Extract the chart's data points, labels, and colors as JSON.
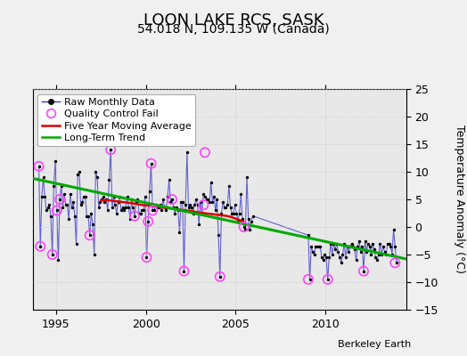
{
  "title": "LOON LAKE RCS, SASK",
  "subtitle": "54.018 N, 109.135 W (Canada)",
  "ylabel": "Temperature Anomaly (°C)",
  "attribution": "Berkeley Earth",
  "xlim": [
    1993.7,
    2014.5
  ],
  "ylim": [
    -15,
    25
  ],
  "yticks": [
    -15,
    -10,
    -5,
    0,
    5,
    10,
    15,
    20,
    25
  ],
  "xticks": [
    1995,
    2000,
    2005,
    2010
  ],
  "bg_color": "#e8e8e8",
  "raw_x": [
    1994.042,
    1994.125,
    1994.208,
    1994.292,
    1994.375,
    1994.458,
    1994.542,
    1994.625,
    1994.708,
    1994.792,
    1994.875,
    1994.958,
    1995.042,
    1995.125,
    1995.208,
    1995.292,
    1995.375,
    1995.458,
    1995.542,
    1995.625,
    1995.708,
    1995.792,
    1995.875,
    1995.958,
    1996.042,
    1996.125,
    1996.208,
    1996.292,
    1996.375,
    1996.458,
    1996.542,
    1996.625,
    1996.708,
    1996.792,
    1996.875,
    1996.958,
    1997.042,
    1997.125,
    1997.208,
    1997.292,
    1997.375,
    1997.458,
    1997.542,
    1997.625,
    1997.708,
    1997.792,
    1997.875,
    1997.958,
    1998.042,
    1998.125,
    1998.208,
    1998.292,
    1998.375,
    1998.458,
    1998.542,
    1998.625,
    1998.708,
    1998.792,
    1998.875,
    1998.958,
    1999.042,
    1999.125,
    1999.208,
    1999.292,
    1999.375,
    1999.458,
    1999.542,
    1999.625,
    1999.708,
    1999.792,
    1999.875,
    1999.958,
    2000.042,
    2000.125,
    2000.208,
    2000.292,
    2000.375,
    2000.458,
    2000.542,
    2000.625,
    2000.708,
    2000.792,
    2000.875,
    2000.958,
    2001.042,
    2001.125,
    2001.208,
    2001.292,
    2001.375,
    2001.458,
    2001.542,
    2001.625,
    2001.708,
    2001.792,
    2001.875,
    2001.958,
    2002.042,
    2002.125,
    2002.208,
    2002.292,
    2002.375,
    2002.458,
    2002.542,
    2002.625,
    2002.708,
    2002.792,
    2002.875,
    2002.958,
    2003.042,
    2003.125,
    2003.208,
    2003.292,
    2003.375,
    2003.458,
    2003.542,
    2003.625,
    2003.708,
    2003.792,
    2003.875,
    2003.958,
    2004.042,
    2004.125,
    2004.208,
    2004.292,
    2004.375,
    2004.458,
    2004.542,
    2004.625,
    2004.708,
    2004.792,
    2004.875,
    2004.958,
    2005.042,
    2005.125,
    2005.208,
    2005.292,
    2005.375,
    2005.458,
    2005.542,
    2005.625,
    2005.708,
    2005.792,
    2005.875,
    2005.958,
    2009.042,
    2009.125,
    2009.208,
    2009.292,
    2009.375,
    2009.458,
    2009.542,
    2009.625,
    2009.708,
    2009.792,
    2009.875,
    2009.958,
    2010.042,
    2010.125,
    2010.208,
    2010.292,
    2010.375,
    2010.458,
    2010.542,
    2010.625,
    2010.708,
    2010.792,
    2010.875,
    2010.958,
    2011.042,
    2011.125,
    2011.208,
    2011.292,
    2011.375,
    2011.458,
    2011.542,
    2011.625,
    2011.708,
    2011.792,
    2011.875,
    2011.958,
    2012.042,
    2012.125,
    2012.208,
    2012.292,
    2012.375,
    2012.458,
    2012.542,
    2012.625,
    2012.708,
    2012.792,
    2012.875,
    2012.958,
    2013.042,
    2013.125,
    2013.208,
    2013.292,
    2013.375,
    2013.458,
    2013.542,
    2013.625,
    2013.708,
    2013.792,
    2013.875,
    2013.958
  ],
  "raw_y": [
    11.0,
    -3.5,
    5.5,
    9.0,
    5.5,
    3.0,
    3.5,
    4.0,
    2.0,
    -5.0,
    7.5,
    12.0,
    3.0,
    -6.0,
    5.0,
    7.5,
    3.5,
    6.0,
    4.0,
    4.0,
    1.5,
    6.0,
    3.5,
    4.5,
    2.0,
    -3.0,
    9.5,
    10.0,
    4.0,
    4.5,
    5.5,
    5.5,
    2.0,
    2.0,
    -1.5,
    2.5,
    0.5,
    -5.0,
    10.0,
    9.0,
    3.5,
    4.5,
    5.0,
    5.5,
    4.5,
    5.0,
    3.0,
    8.5,
    14.0,
    3.5,
    5.5,
    4.0,
    2.5,
    4.5,
    5.5,
    3.0,
    3.5,
    3.0,
    3.5,
    5.5,
    3.5,
    1.5,
    5.0,
    3.5,
    2.0,
    4.5,
    5.0,
    2.5,
    2.5,
    3.0,
    3.0,
    5.5,
    -5.5,
    1.0,
    6.5,
    11.5,
    3.0,
    3.0,
    4.0,
    3.5,
    3.5,
    4.0,
    3.0,
    5.0,
    3.5,
    3.0,
    5.5,
    8.5,
    4.5,
    5.0,
    3.5,
    2.5,
    3.5,
    3.0,
    -1.0,
    4.5,
    4.5,
    -8.0,
    4.0,
    13.5,
    3.5,
    4.0,
    3.5,
    2.5,
    4.0,
    5.0,
    4.0,
    0.5,
    4.5,
    2.5,
    6.0,
    5.5,
    5.0,
    5.0,
    4.5,
    8.0,
    4.5,
    5.5,
    3.0,
    5.0,
    -1.5,
    -9.0,
    2.5,
    4.5,
    3.5,
    3.5,
    4.0,
    7.5,
    3.5,
    2.5,
    2.5,
    4.0,
    2.5,
    1.0,
    2.5,
    6.0,
    1.5,
    0.0,
    -0.5,
    9.0,
    1.5,
    -0.5,
    1.0,
    2.0,
    -1.5,
    -9.5,
    -3.5,
    -4.5,
    -5.0,
    -3.5,
    -3.5,
    -3.5,
    -3.5,
    -5.5,
    -6.0,
    -5.0,
    -5.5,
    -9.5,
    -5.5,
    -3.0,
    -5.0,
    -3.0,
    -4.0,
    -3.0,
    -4.5,
    -5.5,
    -6.5,
    -5.0,
    -3.0,
    -5.5,
    -3.5,
    -4.5,
    -3.5,
    -3.0,
    -3.5,
    -4.0,
    -6.0,
    -3.5,
    -2.5,
    -4.5,
    -3.5,
    -8.0,
    -2.5,
    -4.5,
    -3.0,
    -3.5,
    -5.0,
    -3.0,
    -4.0,
    -5.5,
    -6.0,
    -5.0,
    -3.0,
    -5.0,
    -3.5,
    -4.5,
    -5.0,
    -3.0,
    -3.0,
    -3.5,
    -5.0,
    -0.5,
    -3.5,
    -6.5
  ],
  "qc_fail_x": [
    1994.042,
    1994.125,
    1994.792,
    1995.042,
    1995.208,
    1996.875,
    1998.042,
    1999.375,
    2000.042,
    2000.125,
    2000.292,
    2000.375,
    2001.458,
    2002.125,
    2003.208,
    2003.292,
    2004.125,
    2005.458,
    2009.042,
    2010.125,
    2012.125,
    2013.875
  ],
  "qc_fail_y": [
    11.0,
    -3.5,
    -5.0,
    3.0,
    5.0,
    -1.5,
    14.0,
    2.0,
    -5.5,
    1.0,
    11.5,
    3.0,
    5.0,
    -8.0,
    4.0,
    13.5,
    -9.0,
    0.0,
    -9.5,
    -9.5,
    -8.0,
    -6.5
  ],
  "moving_avg_x": [
    1997.5,
    1997.75,
    1998.0,
    1998.25,
    1998.5,
    1998.75,
    1999.0,
    1999.25,
    1999.5,
    1999.75,
    2000.0,
    2000.25,
    2000.5,
    2000.75,
    2001.0,
    2001.25,
    2001.5,
    2001.75,
    2002.0,
    2002.25,
    2002.5,
    2002.75,
    2003.0,
    2003.25,
    2003.5,
    2003.75,
    2004.0,
    2004.25,
    2004.5,
    2004.75,
    2005.0,
    2005.25,
    2005.5
  ],
  "moving_avg_y": [
    4.8,
    4.85,
    4.8,
    4.7,
    4.6,
    4.5,
    4.4,
    4.3,
    4.15,
    4.0,
    3.9,
    3.85,
    3.75,
    3.6,
    3.5,
    3.4,
    3.3,
    3.2,
    3.1,
    3.0,
    2.9,
    2.75,
    2.6,
    2.5,
    2.4,
    2.3,
    2.2,
    2.1,
    2.0,
    1.8,
    1.5,
    1.2,
    0.8
  ],
  "trend_x": [
    1993.7,
    2014.5
  ],
  "trend_y": [
    8.8,
    -5.8
  ],
  "line_color": "#3333cc",
  "dot_color": "#000000",
  "qc_color": "#ff44ff",
  "moving_avg_color": "#dd0000",
  "trend_color": "#00aa00",
  "grid_color": "#cccccc",
  "title_fontsize": 13,
  "subtitle_fontsize": 10,
  "ylabel_fontsize": 9,
  "tick_fontsize": 9,
  "legend_fontsize": 8,
  "attribution_fontsize": 8
}
